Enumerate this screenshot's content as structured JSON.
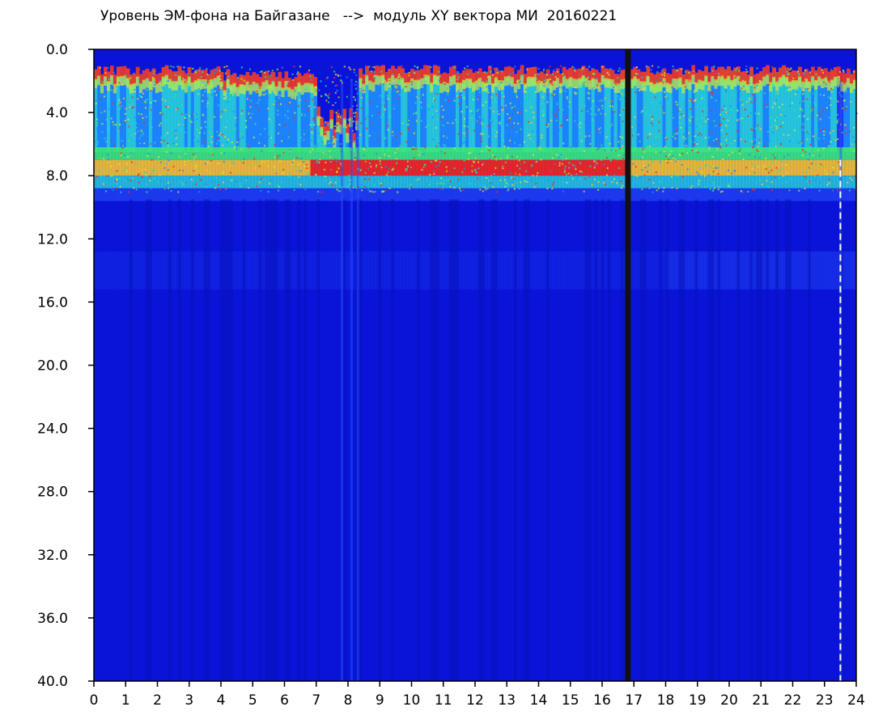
{
  "chart_data": {
    "type": "heatmap",
    "title": "Уровень ЭМ-фона на Байгазане   -->  модуль XY вектора МИ  20160221",
    "xlabel": "",
    "ylabel": "",
    "xlim": [
      0,
      24
    ],
    "ylim": [
      40.0,
      0.0
    ],
    "x_ticks": [
      "0",
      "1",
      "2",
      "3",
      "4",
      "5",
      "6",
      "7",
      "8",
      "9",
      "10",
      "11",
      "12",
      "13",
      "14",
      "15",
      "16",
      "17",
      "18",
      "19",
      "20",
      "21",
      "22",
      "23",
      "24"
    ],
    "y_ticks": [
      "0.0",
      "4.0",
      "8.0",
      "12.0",
      "16.0",
      "20.0",
      "24.0",
      "28.0",
      "32.0",
      "36.0",
      "40.0"
    ],
    "colormap": [
      "#0a14d8",
      "#1e3cf0",
      "#1e8cff",
      "#28d2dc",
      "#3ce67a",
      "#c8f03c",
      "#ffc828",
      "#ff2814"
    ],
    "background_level_color": "#0a14d8",
    "intensity_bands": [
      {
        "y_from": 1.2,
        "y_to": 6.5,
        "description_level": "medium"
      },
      {
        "y_from": 6.5,
        "y_to": 8.6,
        "description_level": "high"
      },
      {
        "y_from": 12.5,
        "y_to": 15.5,
        "description_level": "low"
      }
    ],
    "vertical_gaps_x": [
      7.8,
      8.1,
      8.3,
      16.85,
      23.5
    ],
    "marker_line_x": 16.8,
    "dashed_line_x": 23.5,
    "grid": false
  }
}
